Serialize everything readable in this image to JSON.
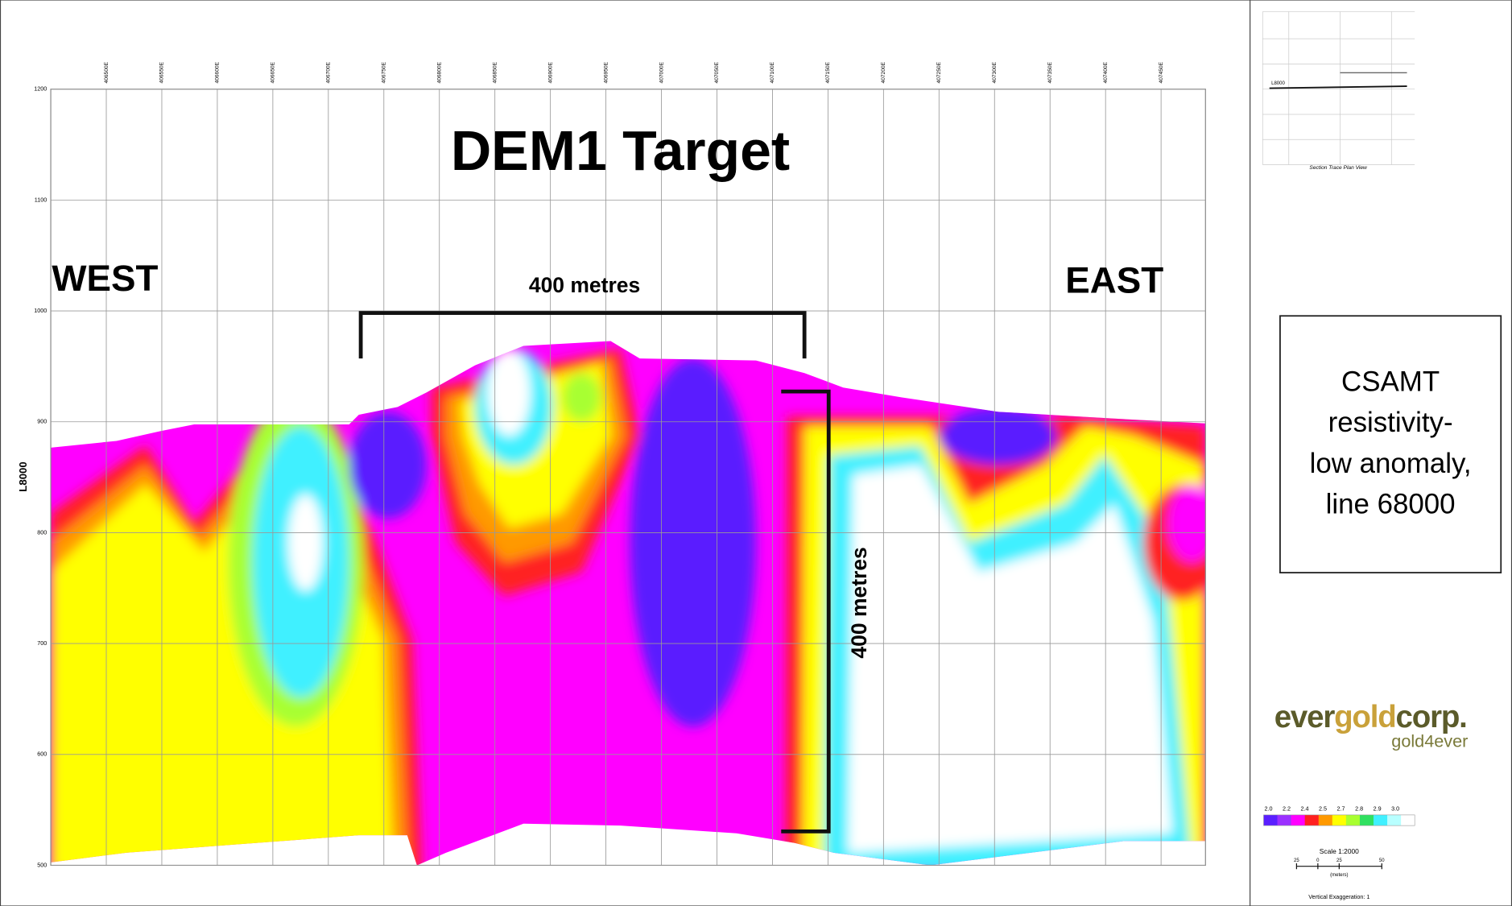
{
  "chart_data": {
    "type": "contour",
    "title": "DEM1 Target",
    "y_label": "L8000",
    "annotations": {
      "west": "WEST",
      "east": "EAST",
      "width": "400 metres",
      "depth": "400 metres"
    },
    "xlim": [
      406450,
      407490
    ],
    "xticks": [
      {
        "value": 406500,
        "label": "406500E"
      },
      {
        "value": 406550,
        "label": "406550E"
      },
      {
        "value": 406600,
        "label": "406600E"
      },
      {
        "value": 406650,
        "label": "406650E"
      },
      {
        "value": 406700,
        "label": "406700E"
      },
      {
        "value": 406750,
        "label": "406750E"
      },
      {
        "value": 406800,
        "label": "406800E"
      },
      {
        "value": 406850,
        "label": "406850E"
      },
      {
        "value": 406900,
        "label": "406900E"
      },
      {
        "value": 406950,
        "label": "406950E"
      },
      {
        "value": 407000,
        "label": "407000E"
      },
      {
        "value": 407050,
        "label": "407050E"
      },
      {
        "value": 407100,
        "label": "407100E"
      },
      {
        "value": 407150,
        "label": "407150E"
      },
      {
        "value": 407200,
        "label": "407200E"
      },
      {
        "value": 407250,
        "label": "407250E"
      },
      {
        "value": 407300,
        "label": "407300E"
      },
      {
        "value": 407350,
        "label": "407350E"
      },
      {
        "value": 407400,
        "label": "407400E"
      },
      {
        "value": 407450,
        "label": "407450E"
      }
    ],
    "ylim": [
      500,
      1200
    ],
    "yticks": [
      500,
      600,
      700,
      800,
      900,
      1000,
      1100,
      1200
    ],
    "grid": true,
    "colorbar": {
      "ticks": [
        {
          "value": 2,
          "label": "2.0"
        },
        2.2,
        2.4,
        2.5,
        2.7,
        2.8,
        2.9,
        {
          "value": 3,
          "label": "3.0"
        }
      ],
      "colors": [
        "#5a1fff",
        "#9b30ff",
        "#ff00ff",
        "#ff2020",
        "#ff9900",
        "#ffff00",
        "#a8ff30",
        "#30e060",
        "#40f0ff",
        "#b8ffff",
        "#ffffff"
      ]
    }
  },
  "sidebar": {
    "plan_view": {
      "line": "L8000",
      "caption": "Section Trace Plan View"
    },
    "note": [
      "CSAMT",
      "resistivity-",
      "low anomaly,",
      "line 68000"
    ],
    "logo": {
      "name": [
        "ever",
        "gold",
        "corp."
      ],
      "tagline": "gold4ever"
    },
    "scale": {
      "title": "Scale 1:2000",
      "ticks": [
        "25",
        "0",
        "25",
        "50"
      ],
      "unit": "(meters)",
      "exaggeration": "Vertical Exaggeration: 1"
    }
  }
}
